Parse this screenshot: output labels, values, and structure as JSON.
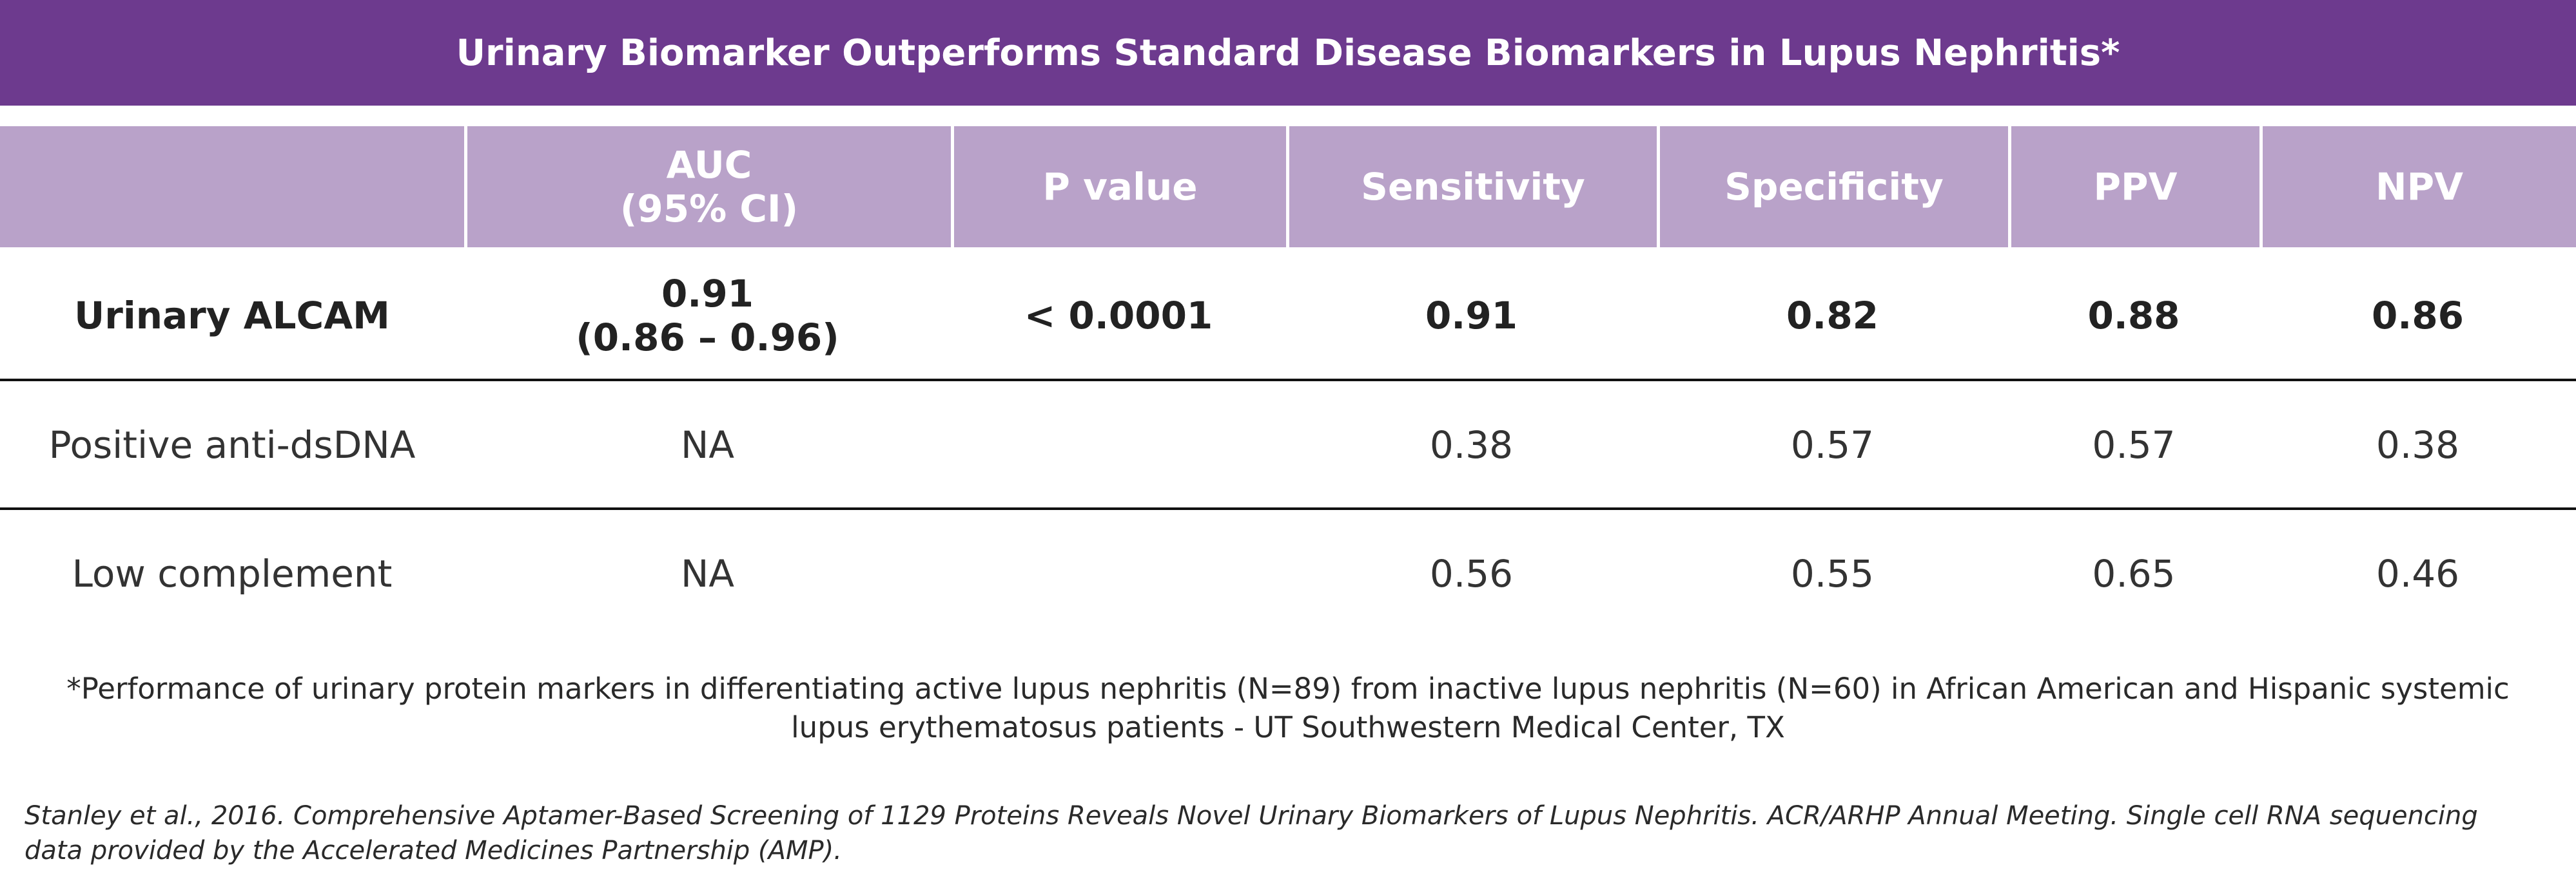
{
  "title": "Urinary Biomarker Outperforms Standard Disease Biomarkers in Lupus Nephritis*",
  "table": {
    "headers": [
      "",
      "AUC\n(95% CI)",
      "P value",
      "Sensitivity",
      "Specificity",
      "PPV",
      "NPV"
    ],
    "rows": [
      {
        "label": "Urinary ALCAM",
        "auc": "0.91\n(0.86 – 0.96)",
        "p_value": "< 0.0001",
        "sensitivity": "0.91",
        "specificity": "0.82",
        "ppv": "0.88",
        "npv": "0.86"
      },
      {
        "label": "Positive anti-dsDNA",
        "auc": "NA",
        "p_value": "",
        "sensitivity": "0.38",
        "specificity": "0.57",
        "ppv": "0.57",
        "npv": "0.38"
      },
      {
        "label": "Low complement",
        "auc": "NA",
        "p_value": "",
        "sensitivity": "0.56",
        "specificity": "0.55",
        "ppv": "0.65",
        "npv": "0.46"
      }
    ]
  },
  "footnote": "*Performance of urinary protein markers in differentiating active lupus nephritis (N=89) from inactive lupus nephritis (N=60) in African American and Hispanic systemic lupus erythematosus patients - UT Southwestern Medical Center, TX",
  "citation": "Stanley et al., 2016. Comprehensive Aptamer-Based Screening of 1129 Proteins Reveals Novel Urinary Biomarkers of Lupus Nephritis. ACR/ARHP Annual Meeting.  Single cell RNA sequencing data provided by the Accelerated Medicines Partnership (AMP).",
  "colors": {
    "title_bar": "#6d3a8e",
    "header_row": "#b9a2c9"
  }
}
